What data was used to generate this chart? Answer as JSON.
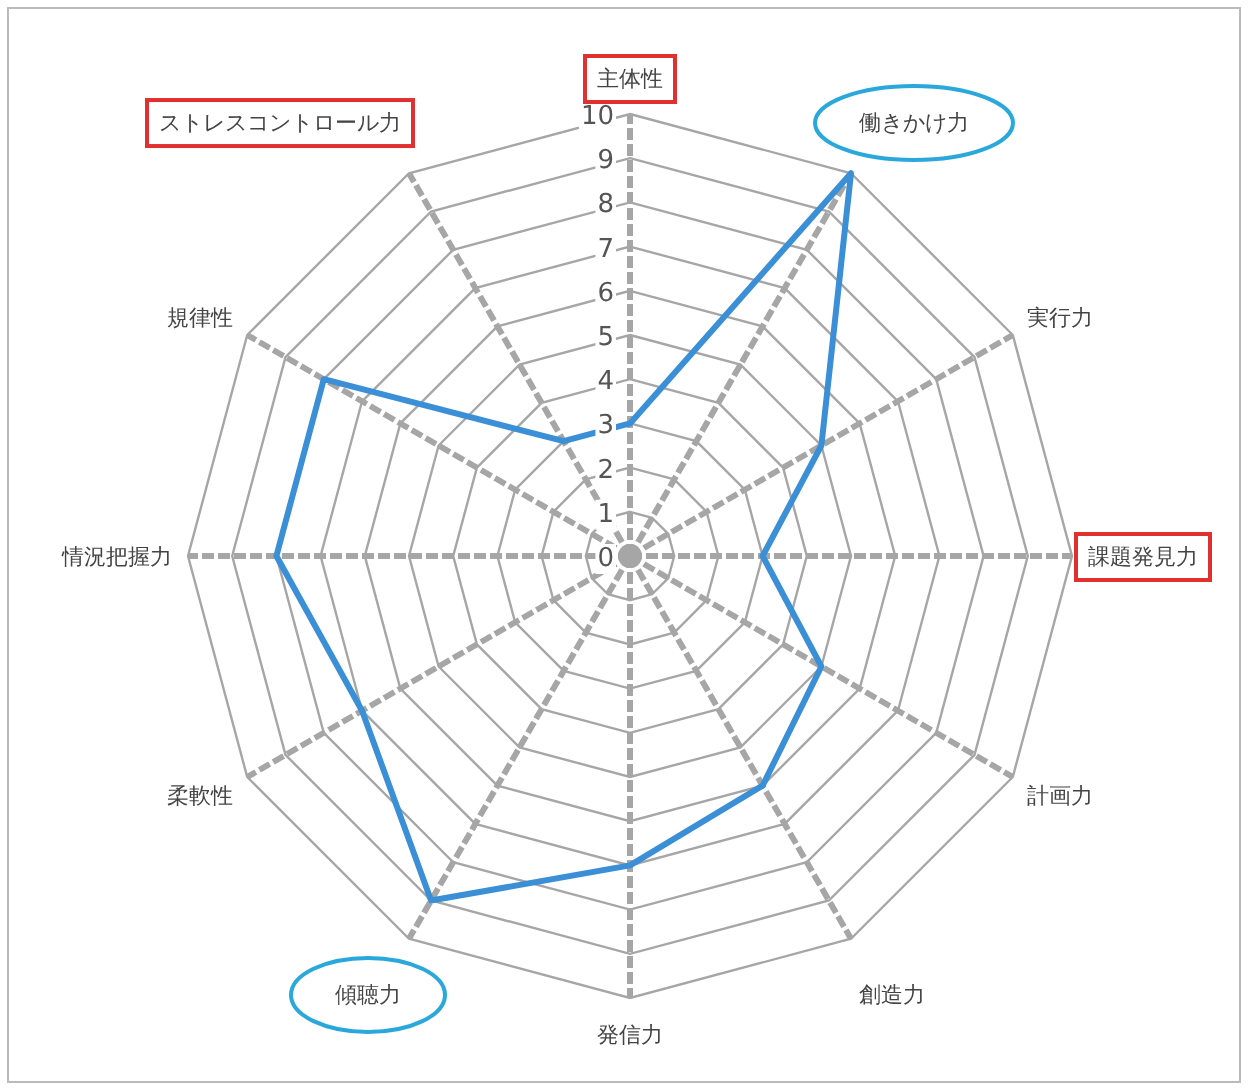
{
  "chart_data": {
    "type": "radar",
    "categories": [
      "主体性",
      "働きかけ力",
      "実行力",
      "課題発見力",
      "計画力",
      "創造力",
      "発信力",
      "傾聴力",
      "柔軟性",
      "情況把握力",
      "規律性",
      "ストレスコントロール力"
    ],
    "series": [
      {
        "color": "#3b8fd6",
        "values": [
          3,
          10,
          5,
          3,
          5,
          6,
          7,
          9,
          7,
          8,
          8,
          3
        ]
      }
    ],
    "ylim": [
      0,
      10
    ],
    "yticks": [
      0,
      1,
      2,
      3,
      4,
      5,
      6,
      7,
      8,
      9,
      10
    ],
    "grid": true
  }
}
